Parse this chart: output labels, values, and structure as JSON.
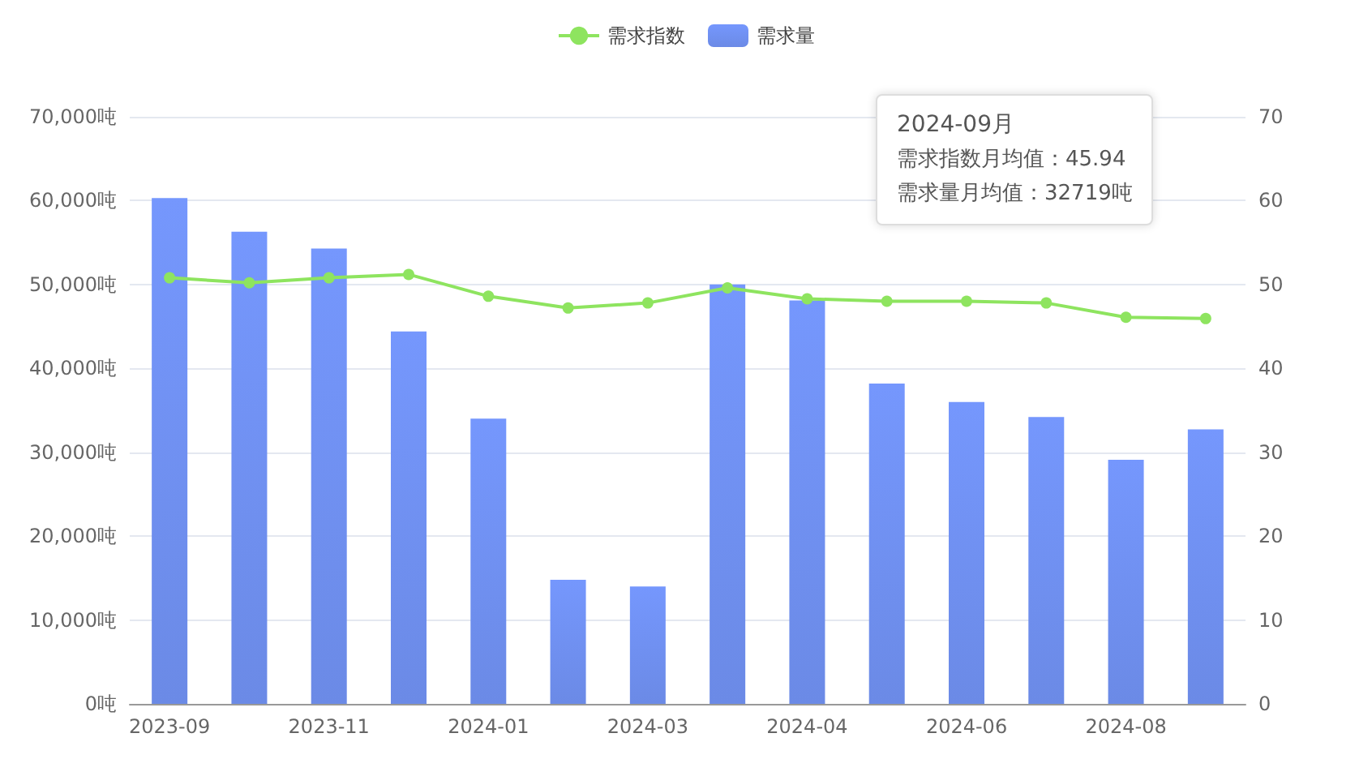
{
  "chart_data": {
    "type": "bar",
    "categories": [
      "2023-09",
      null,
      "2023-11",
      null,
      "2024-01",
      null,
      "2024-03",
      null,
      "2024-04",
      null,
      "2024-06",
      null,
      "2024-08",
      null
    ],
    "series": [
      {
        "name": "需求指数",
        "type": "line",
        "axis": "y2",
        "color": "#8ee45f",
        "marker": "circle",
        "values": [
          50.8,
          50.2,
          50.8,
          51.2,
          48.6,
          47.2,
          47.8,
          49.6,
          48.3,
          48.0,
          48.0,
          47.8,
          46.1,
          45.94
        ]
      },
      {
        "name": "需求量",
        "color": "#6b8ae6",
        "values": [
          60300,
          56300,
          54300,
          44400,
          34000,
          14800,
          14000,
          50000,
          48100,
          38200,
          36000,
          34200,
          29100,
          32719
        ]
      }
    ],
    "ylim": [
      0,
      70000
    ],
    "yticks": [
      {
        "value": 0,
        "label": "0吨"
      },
      {
        "value": 10000,
        "label": "10,000吨"
      },
      {
        "value": 20000,
        "label": "20,000吨"
      },
      {
        "value": 30000,
        "label": "30,000吨"
      },
      {
        "value": 40000,
        "label": "40,000吨"
      },
      {
        "value": 50000,
        "label": "50,000吨"
      },
      {
        "value": 60000,
        "label": "60,000吨"
      },
      {
        "value": 70000,
        "label": "70,000吨"
      }
    ],
    "y2lim": [
      0,
      70
    ],
    "y2ticks": [
      0,
      10,
      20,
      30,
      40,
      50,
      60,
      70
    ],
    "grid": "y",
    "legend": "top",
    "annotations": [
      "2024-09月",
      "需求指数月均值：45.94",
      "需求量月均值：32719吨"
    ]
  }
}
